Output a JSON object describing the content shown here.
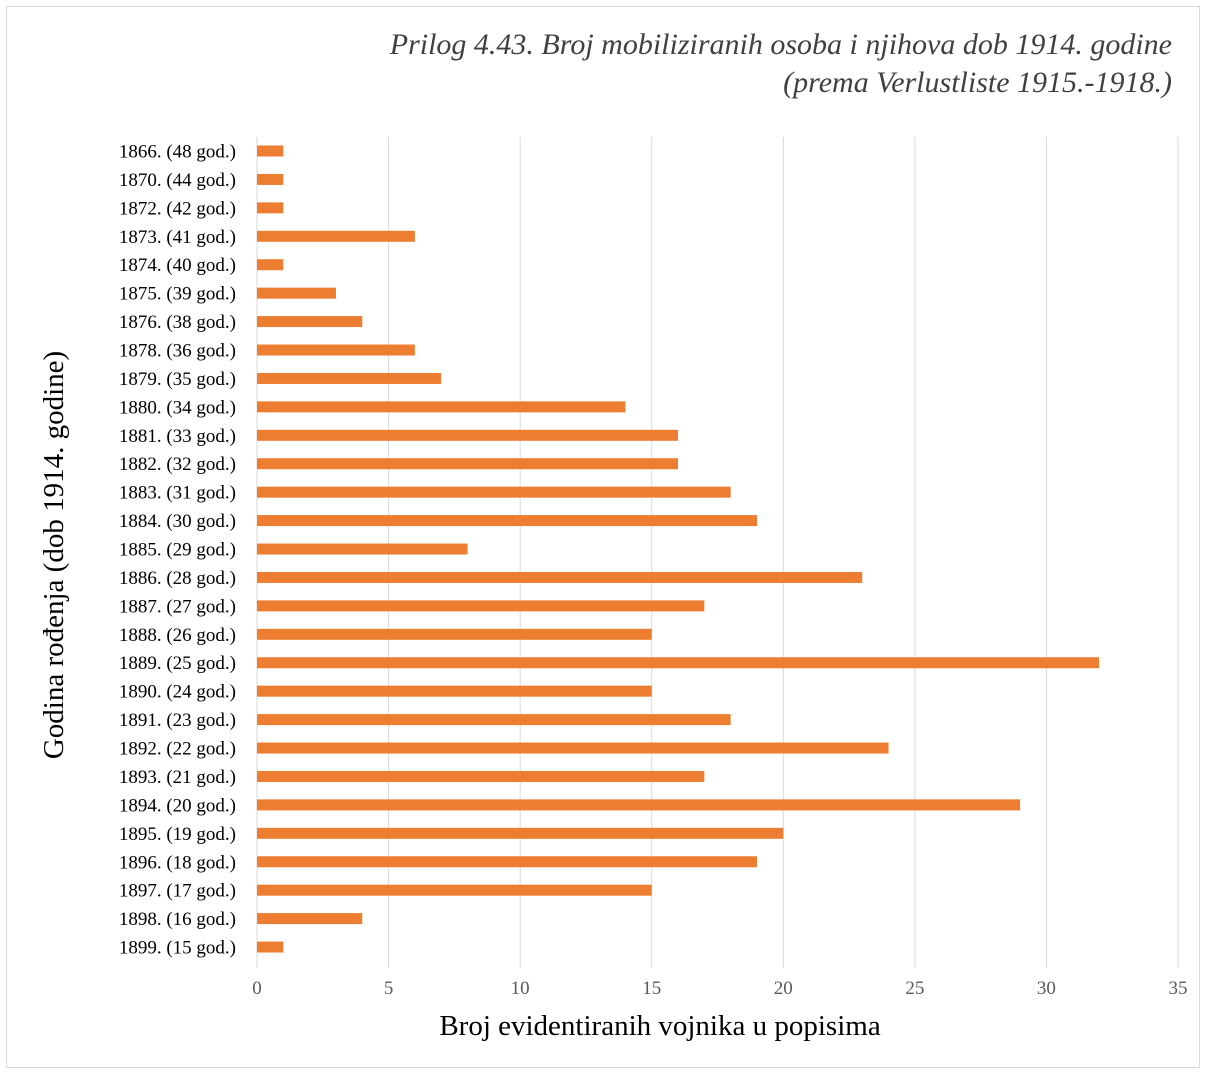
{
  "chart_data": {
    "type": "bar",
    "orientation": "horizontal",
    "title": "Prilog 4.43.  Broj mobiliziranih osoba i njihova dob 1914. godine",
    "subtitle": "(prema Verlustliste 1915.-1918.)",
    "xlabel": "Broj evidentiranih vojnika u popisima",
    "ylabel": "Godina rođenja (dob 1914. godine)",
    "xlim": [
      0,
      35
    ],
    "xticks": [
      0,
      5,
      10,
      15,
      20,
      25,
      30,
      35
    ],
    "grid": "vertical",
    "bar_color": "#ed7d31",
    "categories": [
      "1866. (48 god.)",
      "1870. (44 god.)",
      "1872. (42 god.)",
      "1873. (41 god.)",
      "1874. (40 god.)",
      "1875. (39 god.)",
      "1876. (38 god.)",
      "1878. (36 god.)",
      "1879. (35 god.)",
      "1880. (34 god.)",
      "1881. (33 god.)",
      "1882. (32 god.)",
      "1883. (31 god.)",
      "1884. (30 god.)",
      "1885. (29 god.)",
      "1886. (28 god.)",
      "1887. (27 god.)",
      "1888. (26 god.)",
      "1889. (25 god.)",
      "1890. (24 god.)",
      "1891. (23 god.)",
      "1892. (22 god.)",
      "1893. (21 god.)",
      "1894. (20 god.)",
      "1895. (19 god.)",
      "1896. (18 god.)",
      "1897. (17 god.)",
      "1898. (16 god.)",
      "1899. (15 god.)"
    ],
    "values": [
      1,
      1,
      1,
      6,
      1,
      3,
      4,
      6,
      7,
      14,
      16,
      16,
      18,
      19,
      8,
      23,
      17,
      15,
      32,
      15,
      18,
      24,
      17,
      29,
      20,
      19,
      15,
      4,
      1
    ]
  }
}
